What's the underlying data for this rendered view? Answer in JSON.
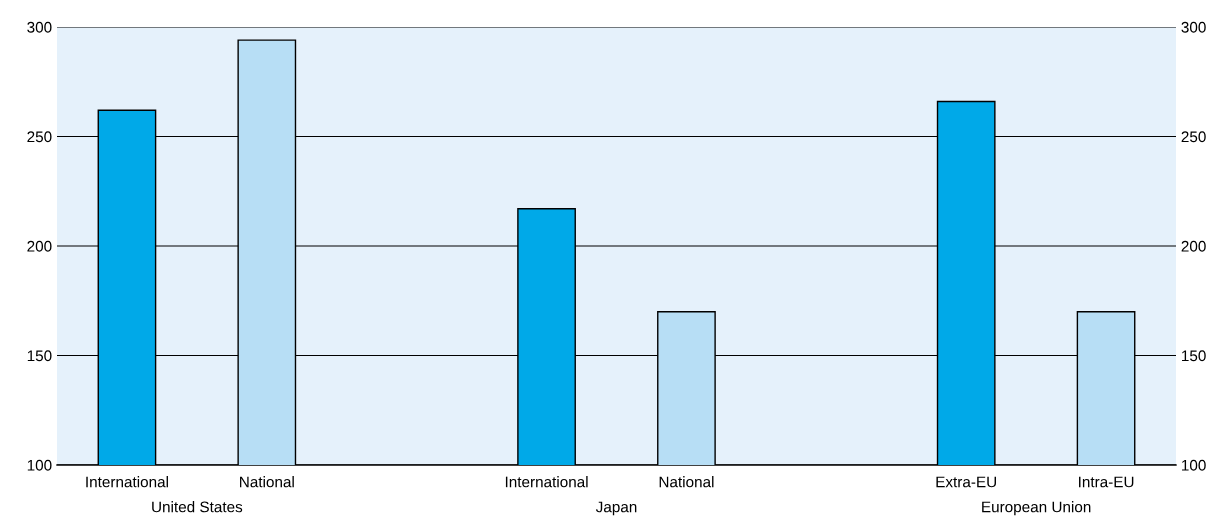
{
  "chart_data": {
    "type": "bar",
    "categories": [
      "International",
      "National",
      "International",
      "National",
      "Extra-EU",
      "Intra-EU"
    ],
    "values": [
      262,
      294,
      217,
      170,
      266,
      170
    ],
    "colors": [
      "#00a9e8",
      "#b7def5",
      "#00a9e8",
      "#b7def5",
      "#00a9e8",
      "#b7def5"
    ],
    "ylim": [
      100,
      300
    ],
    "yticks": [
      100,
      150,
      200,
      250,
      300
    ],
    "y2lim": [
      100,
      300
    ],
    "y2ticks": [
      100,
      150,
      200,
      250,
      300
    ],
    "grid": "y",
    "annotations": [
      "United States",
      "Japan",
      "European Union"
    ]
  }
}
